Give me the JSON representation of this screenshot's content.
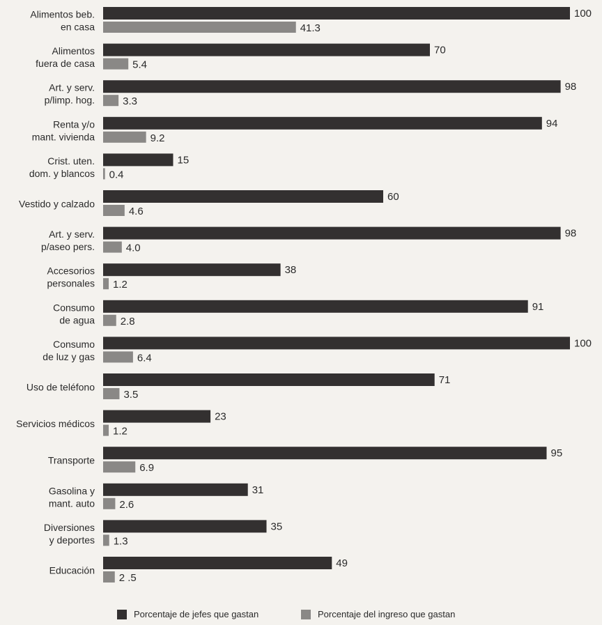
{
  "chart_data": {
    "type": "bar",
    "orientation": "horizontal",
    "categories": [
      [
        "Alimentos beb.",
        "en casa"
      ],
      [
        "Alimentos",
        "fuera de casa"
      ],
      [
        "Art. y serv.",
        "p/limp. hog."
      ],
      [
        "Renta y/o",
        "mant. vivienda"
      ],
      [
        "Crist. uten.",
        "dom. y blancos"
      ],
      [
        "Vestido y calzado"
      ],
      [
        "Art. y serv.",
        "p/aseo pers."
      ],
      [
        "Accesorios",
        "personales"
      ],
      [
        "Consumo",
        "de agua"
      ],
      [
        "Consumo",
        "de luz y gas"
      ],
      [
        "Uso de teléfono"
      ],
      [
        "Servicios médicos"
      ],
      [
        "Transporte"
      ],
      [
        "Gasolina y",
        "mant. auto"
      ],
      [
        "Diversiones",
        "y deportes"
      ],
      [
        "Educación"
      ]
    ],
    "series": [
      {
        "name": "Porcentaje de jefes que gastan",
        "color": "#333030",
        "values": [
          100,
          70,
          98,
          94,
          15,
          60,
          98,
          38,
          91,
          100,
          71,
          23,
          95,
          31,
          35,
          49
        ],
        "labels": [
          "100",
          "70",
          "98",
          "94",
          "15",
          "60",
          "98",
          "38",
          "91",
          "100",
          "71",
          "23",
          "95",
          "31",
          "35",
          "49"
        ]
      },
      {
        "name": "Porcentaje del ingreso que gastan",
        "color": "#8a8886",
        "values": [
          41.3,
          5.4,
          3.3,
          9.2,
          0.4,
          4.6,
          4.0,
          1.2,
          2.8,
          6.4,
          3.5,
          1.2,
          6.9,
          2.6,
          1.3,
          2.5
        ],
        "labels": [
          "41.3",
          "5.4",
          "3.3",
          "9.2",
          "0.4",
          "4.6",
          "4.0",
          "1.2",
          "2.8",
          "6.4",
          "3.5",
          "1.2",
          "6.9",
          "2.6",
          "1.3",
          "2 .5"
        ]
      }
    ],
    "xlim": [
      0,
      100
    ],
    "legend_position": "bottom",
    "grid": false
  }
}
